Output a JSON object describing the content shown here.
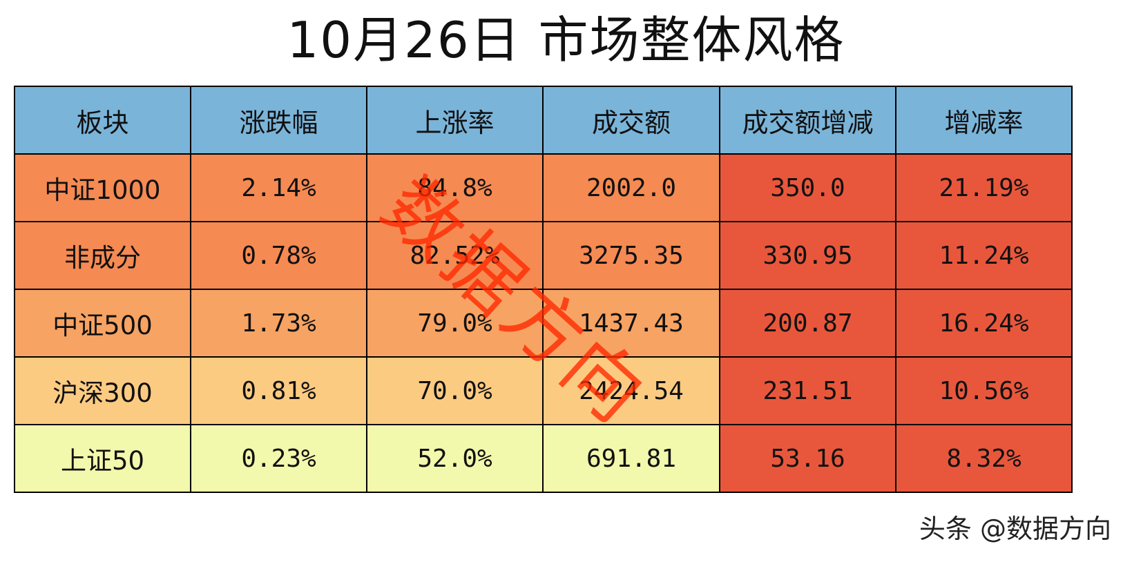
{
  "title": "10月26日 市场整体风格",
  "watermark": "数据方向",
  "credit": "头条 @数据方向",
  "colors": {
    "header": "#7ab4d9",
    "dark_orange": "#f58a52",
    "orange": "#f7a363",
    "light_orange": "#fccb82",
    "pale_yellow": "#f2f8ac",
    "red": "#e8573c",
    "watermark": "#ff2800"
  },
  "table": {
    "headers": [
      "板块",
      "涨跌幅",
      "上涨率",
      "成交额",
      "成交额增减",
      "增减率"
    ],
    "rows": [
      {
        "cells": [
          "中证1000",
          "2.14%",
          "84.8%",
          "2002.0",
          "350.0",
          "21.19%"
        ],
        "fill": "dark_orange"
      },
      {
        "cells": [
          "非成分",
          "0.78%",
          "82.52%",
          "3275.35",
          "330.95",
          "11.24%"
        ],
        "fill": "dark_orange"
      },
      {
        "cells": [
          "中证500",
          "1.73%",
          "79.0%",
          "1437.43",
          "200.87",
          "16.24%"
        ],
        "fill": "orange"
      },
      {
        "cells": [
          "沪深300",
          "0.81%",
          "70.0%",
          "2424.54",
          "231.51",
          "10.56%"
        ],
        "fill": "light_orange"
      },
      {
        "cells": [
          "上证50",
          "0.23%",
          "52.0%",
          "691.81",
          "53.16",
          "8.32%"
        ],
        "fill": "pale_yellow"
      }
    ]
  }
}
